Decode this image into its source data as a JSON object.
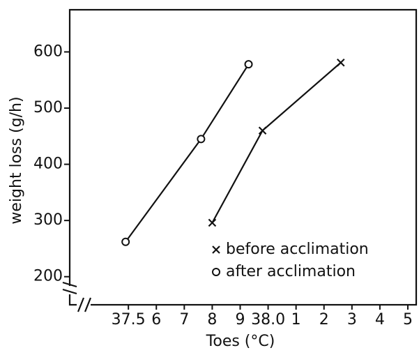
{
  "chart_data": {
    "type": "line",
    "xlabel": "Toes (°C)",
    "ylabel": "weight loss (g/h)",
    "xlim": [
      37.29,
      38.53
    ],
    "ylim": [
      150,
      675
    ],
    "xticks": [
      {
        "value": 37.5,
        "label": "37.5"
      },
      {
        "value": 37.6,
        "label": "6"
      },
      {
        "value": 37.7,
        "label": "7"
      },
      {
        "value": 37.8,
        "label": "8"
      },
      {
        "value": 37.9,
        "label": "9"
      },
      {
        "value": 38.0,
        "label": "38.0"
      },
      {
        "value": 38.1,
        "label": "1"
      },
      {
        "value": 38.2,
        "label": "2"
      },
      {
        "value": 38.3,
        "label": "3"
      },
      {
        "value": 38.4,
        "label": "4"
      },
      {
        "value": 38.5,
        "label": "5"
      }
    ],
    "yticks": [
      200,
      300,
      400,
      500,
      600
    ],
    "legend": "lower right",
    "series": [
      {
        "name": "before acclimation",
        "color": "#111111",
        "marker": "x",
        "x": [
          37.8,
          37.98,
          38.26
        ],
        "values": [
          296,
          460,
          581
        ]
      },
      {
        "name": "after acclimation",
        "color": "#111111",
        "marker": "circle",
        "x": [
          37.49,
          37.76,
          37.93
        ],
        "values": [
          262,
          445,
          578
        ]
      }
    ]
  }
}
